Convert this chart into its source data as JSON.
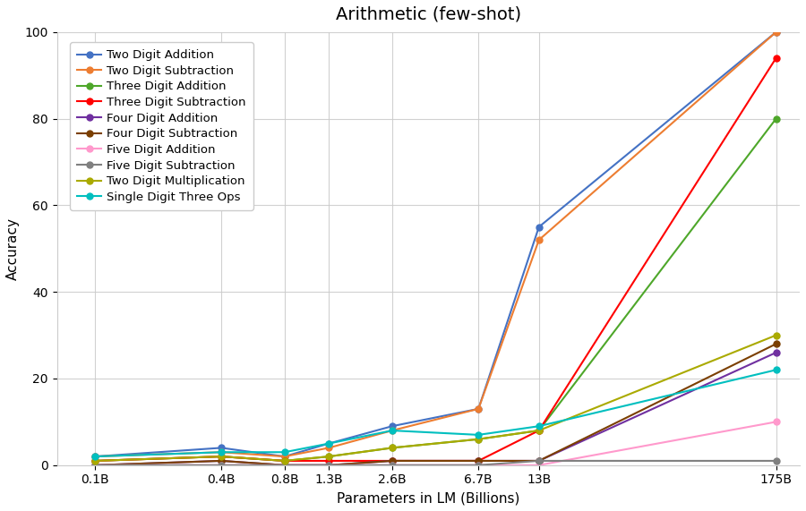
{
  "title": "Arithmetic (few-shot)",
  "xlabel": "Parameters in LM (Billions)",
  "ylabel": "Accuracy",
  "x_labels": [
    "0.1B",
    "0.4B",
    "0.8B",
    "1.3B",
    "2.6B",
    "6.7B",
    "13B",
    "175B"
  ],
  "x_values": [
    0.1,
    0.4,
    0.8,
    1.3,
    2.6,
    6.7,
    13,
    175
  ],
  "ylim": [
    0,
    100
  ],
  "yticks": [
    0,
    20,
    40,
    60,
    80,
    100
  ],
  "series": [
    {
      "label": "Two Digit Addition",
      "color": "#4472C4",
      "marker": "o",
      "values": [
        2,
        4,
        2,
        5,
        9,
        13,
        55,
        100
      ]
    },
    {
      "label": "Two Digit Subtraction",
      "color": "#ED7D31",
      "marker": "o",
      "values": [
        2,
        3,
        2,
        4,
        8,
        13,
        52,
        100
      ]
    },
    {
      "label": "Three Digit Addition",
      "color": "#4EA72A",
      "marker": "o",
      "values": [
        1,
        2,
        1,
        2,
        4,
        6,
        8,
        80
      ]
    },
    {
      "label": "Three Digit Subtraction",
      "color": "#FF0000",
      "marker": "o",
      "values": [
        1,
        2,
        1,
        1,
        1,
        1,
        8,
        94
      ]
    },
    {
      "label": "Four Digit Addition",
      "color": "#7030A0",
      "marker": "o",
      "values": [
        0,
        1,
        0,
        0,
        1,
        1,
        1,
        26
      ]
    },
    {
      "label": "Four Digit Subtraction",
      "color": "#7B3F00",
      "marker": "o",
      "values": [
        0,
        1,
        0,
        0,
        1,
        1,
        1,
        28
      ]
    },
    {
      "label": "Five Digit Addition",
      "color": "#FF99CC",
      "marker": "o",
      "values": [
        0,
        0,
        0,
        0,
        0,
        0,
        0,
        10
      ]
    },
    {
      "label": "Five Digit Subtraction",
      "color": "#808080",
      "marker": "o",
      "values": [
        0,
        0,
        0,
        0,
        0,
        0,
        1,
        1
      ]
    },
    {
      "label": "Two Digit Multiplication",
      "color": "#AAAA00",
      "marker": "o",
      "values": [
        1,
        2,
        1,
        2,
        4,
        6,
        8,
        30
      ]
    },
    {
      "label": "Single Digit Three Ops",
      "color": "#00BFBF",
      "marker": "o",
      "values": [
        2,
        3,
        3,
        5,
        8,
        7,
        9,
        22
      ]
    }
  ],
  "background_color": "#FFFFFF",
  "grid_color": "#CCCCCC",
  "title_fontsize": 14,
  "label_fontsize": 11,
  "tick_fontsize": 10,
  "legend_fontsize": 9.5
}
